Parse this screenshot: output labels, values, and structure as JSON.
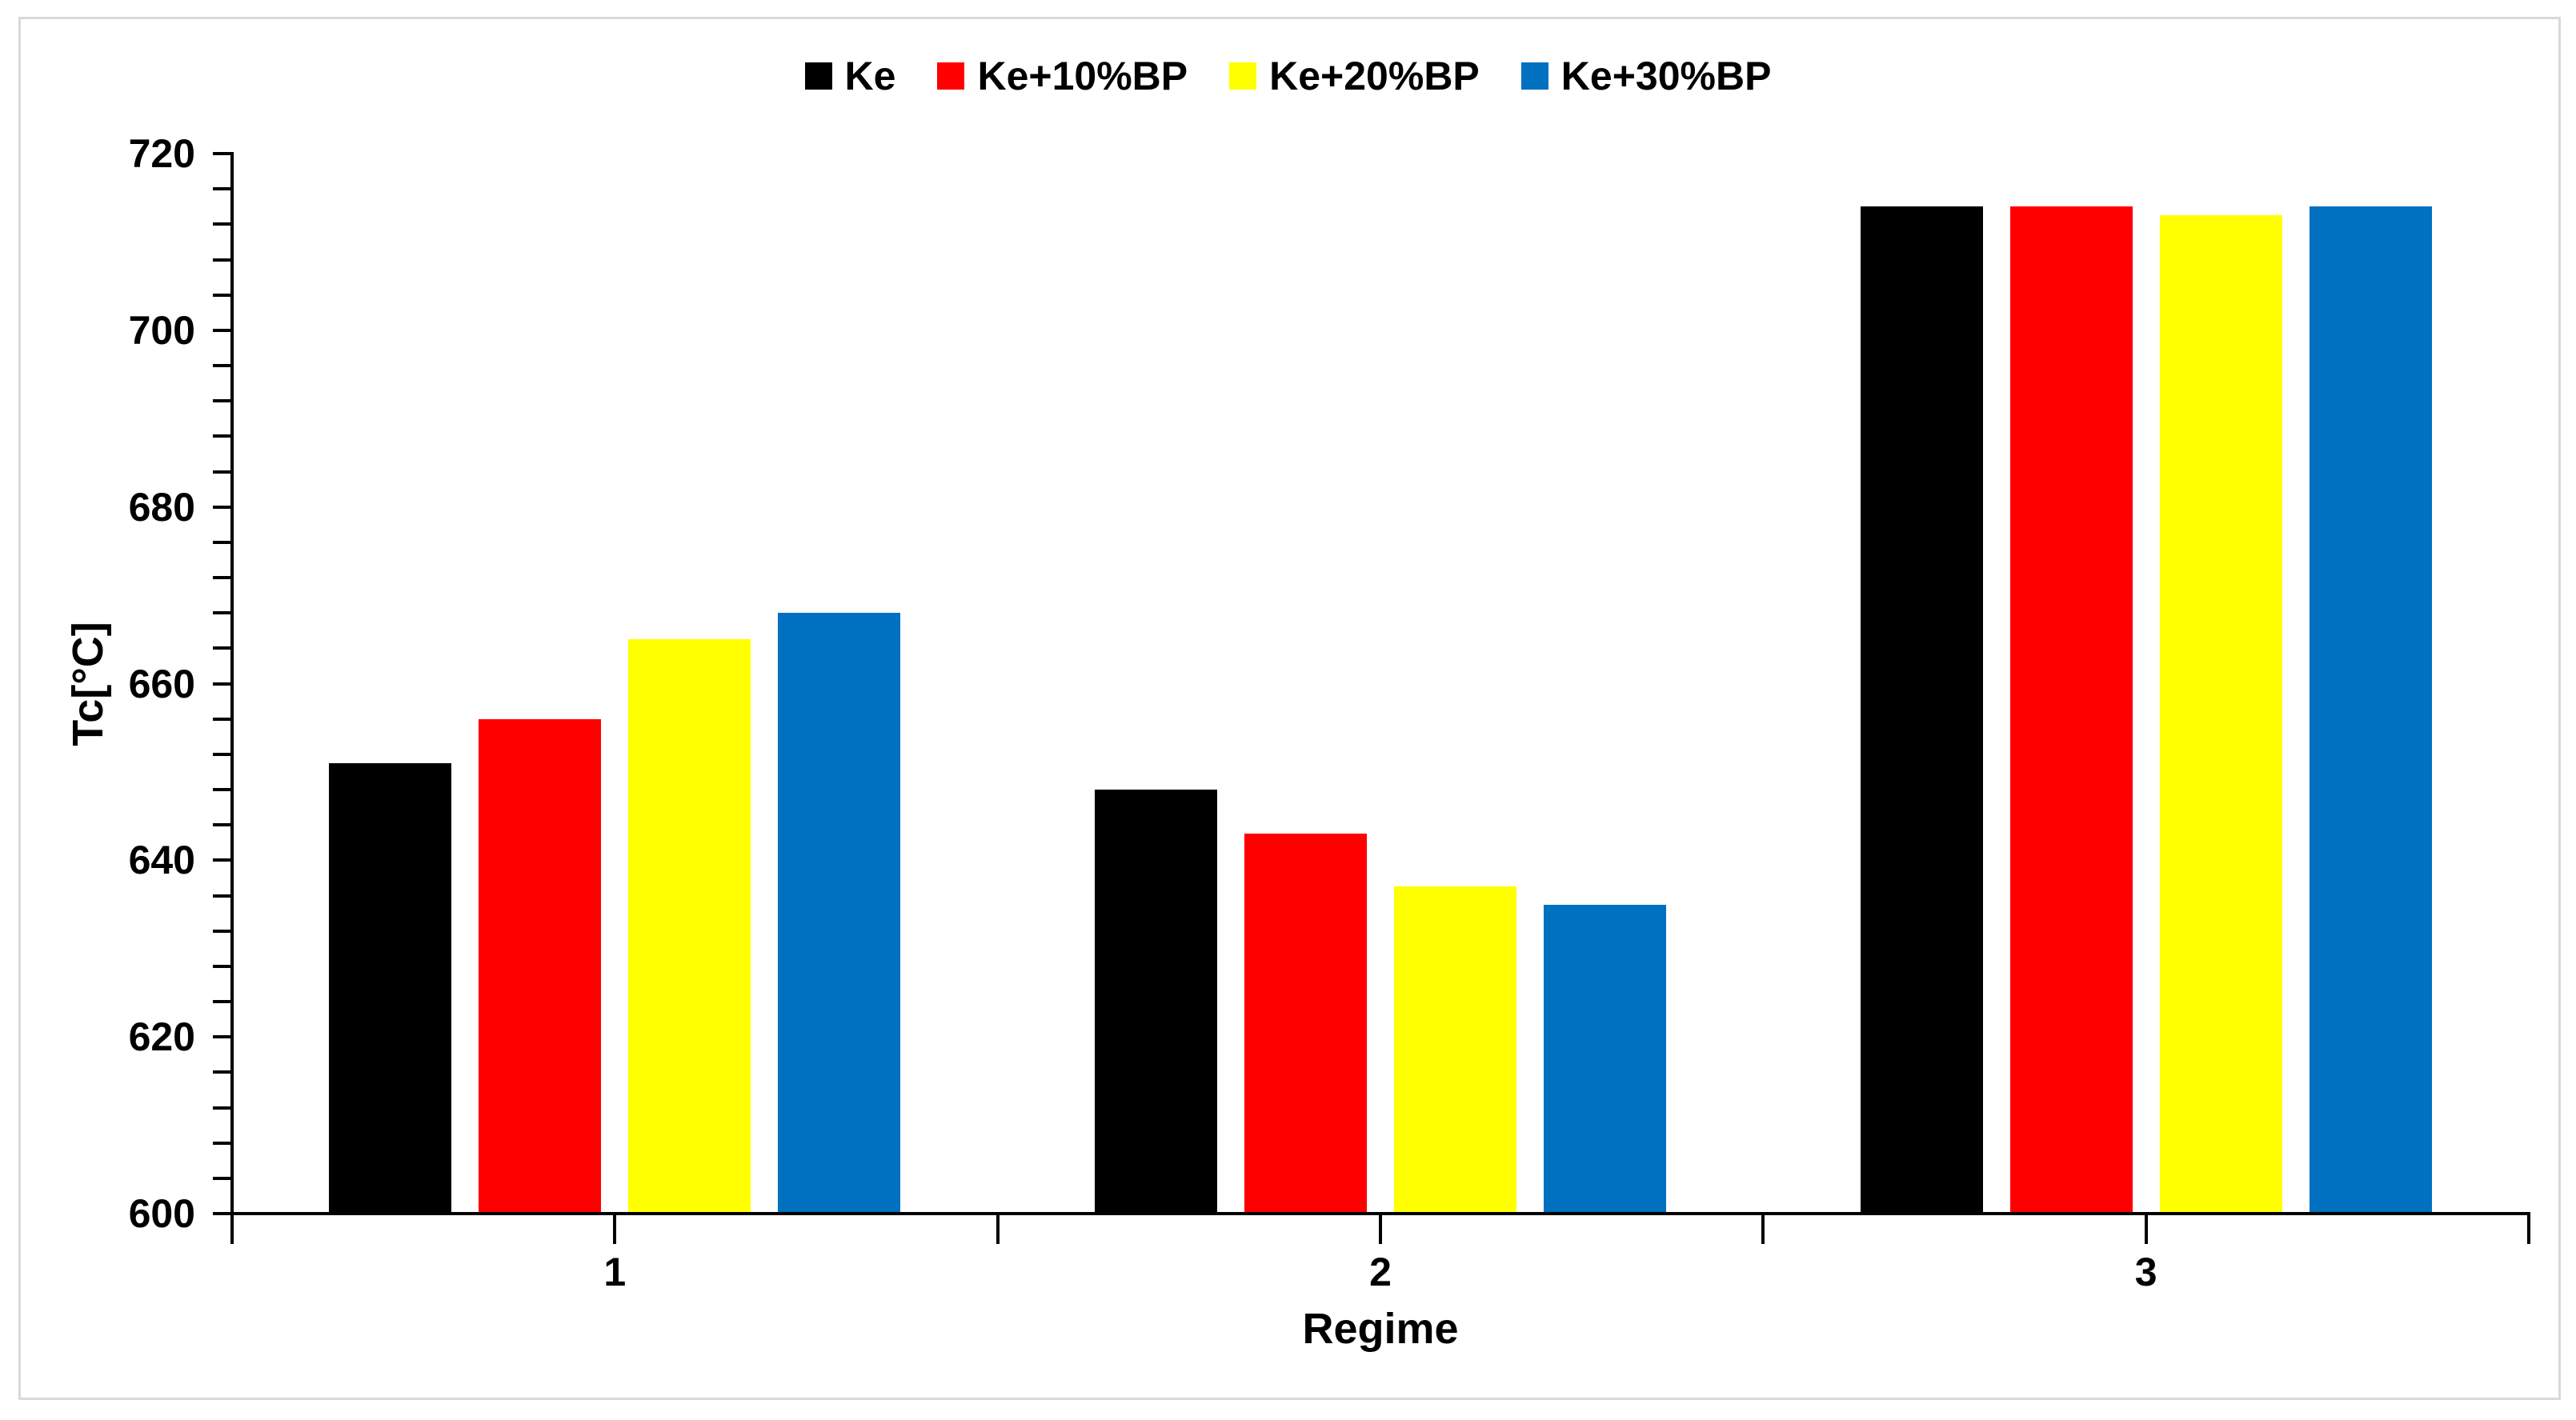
{
  "chart_data": {
    "type": "bar",
    "title": "",
    "xlabel": "Regime",
    "ylabel": "Tc[°C]",
    "categories": [
      "1",
      "2",
      "3"
    ],
    "series": [
      {
        "name": "Ke",
        "color": "#000000",
        "values": [
          651,
          648,
          714
        ]
      },
      {
        "name": "Ke+10%BP",
        "color": "#FF0000",
        "values": [
          656,
          643,
          714
        ]
      },
      {
        "name": "Ke+20%BP",
        "color": "#FFFF00",
        "values": [
          665,
          637,
          713
        ]
      },
      {
        "name": "Ke+30%BP",
        "color": "#0070C0",
        "values": [
          668,
          635,
          714
        ]
      }
    ],
    "ylim": [
      600,
      720
    ],
    "y_major_tick": 20,
    "y_minor_tick": 4,
    "y_tick_labels": [
      "600",
      "620",
      "640",
      "660",
      "680",
      "700",
      "720"
    ],
    "legend_position": "top center",
    "grid": false,
    "axis_color": "#000000",
    "frame_border_color": "#D9D9D9",
    "background_color": "#FFFFFF"
  }
}
